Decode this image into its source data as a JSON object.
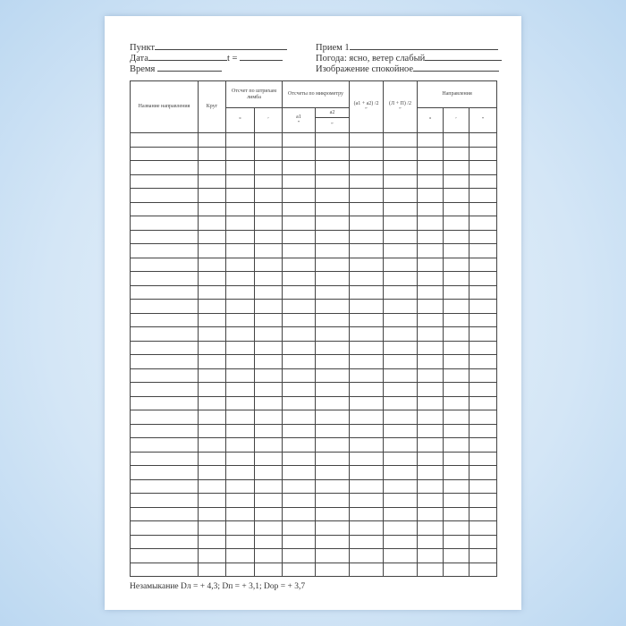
{
  "header": {
    "punkt": "Пункт",
    "data": "Дата",
    "t": "t =",
    "vremya": "Время",
    "priem": "Прием 1",
    "pogoda": "Погода: ясно, ветер слабый",
    "izobrazhenie": "Изображение спокойное"
  },
  "table": {
    "col_name": "Название направления",
    "col_krug": "Круг",
    "col_limb": "Отсчет по штрихам лимба",
    "col_micro": "Отсчеты по микрометру",
    "col_a1": "a1",
    "col_a2": "a2",
    "col_avg_a": "(a1 + a2) /2",
    "col_avg_lp": "(Л + П) /2",
    "col_dir": "Направления",
    "deg": "°",
    "min": "′",
    "sec": "″"
  },
  "footer": "Незамыкание Dл = + 4,3; Dп = + 3,1; Dop = + 3,7"
}
